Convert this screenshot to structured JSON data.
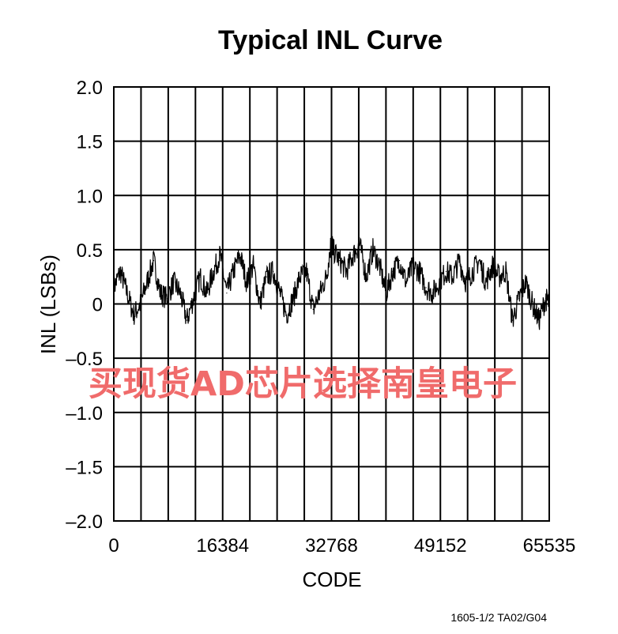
{
  "chart_data": {
    "type": "line",
    "title": "Typical INL Curve",
    "xlabel": "CODE",
    "ylabel": "INL (LSBs)",
    "xlim": [
      0,
      65535
    ],
    "ylim": [
      -2.0,
      2.0
    ],
    "x_ticks": [
      "0",
      "16384",
      "32768",
      "49152",
      "65535"
    ],
    "y_ticks": [
      "2.0",
      "1.5",
      "1.0",
      "0.5",
      "0",
      "–0.5",
      "–1.0",
      "–1.5",
      "–2.0"
    ],
    "grid": true,
    "series": [
      {
        "color": "#000000",
        "x": [
          0,
          1000,
          2000,
          3000,
          4000,
          5000,
          6000,
          7000,
          8000,
          9000,
          10000,
          11000,
          12000,
          13000,
          14000,
          15000,
          16000,
          17000,
          18000,
          19000,
          20000,
          21000,
          22000,
          23000,
          24000,
          25000,
          26000,
          27000,
          28000,
          29000,
          30000,
          31000,
          32000,
          32768,
          33000,
          34000,
          35000,
          36000,
          37000,
          38000,
          39000,
          40000,
          41000,
          42000,
          43000,
          44000,
          45000,
          46000,
          47000,
          48000,
          49000,
          50000,
          51000,
          52000,
          53000,
          54000,
          55000,
          56000,
          57000,
          58000,
          59000,
          60000,
          61000,
          62000,
          63000,
          64000,
          65000,
          65535
        ],
        "y": [
          0.15,
          0.3,
          0.1,
          -0.1,
          0.0,
          0.2,
          0.4,
          0.1,
          0.05,
          0.2,
          0.1,
          -0.15,
          0.05,
          0.25,
          0.1,
          0.3,
          0.45,
          0.1,
          0.3,
          0.45,
          0.2,
          0.35,
          0.0,
          0.25,
          0.3,
          0.1,
          -0.1,
          0.05,
          0.25,
          0.3,
          -0.05,
          0.1,
          0.25,
          0.6,
          0.5,
          0.4,
          0.3,
          0.45,
          0.55,
          0.25,
          0.5,
          0.35,
          0.1,
          0.3,
          0.4,
          0.2,
          0.35,
          0.3,
          0.15,
          0.1,
          0.2,
          0.3,
          0.25,
          0.4,
          0.2,
          0.3,
          0.4,
          0.2,
          0.35,
          0.25,
          0.3,
          -0.15,
          0.05,
          0.2,
          0.0,
          -0.15,
          0.05,
          0.0
        ]
      }
    ],
    "watermark": "买现货AD芯片选择南皇电子",
    "footnote": "1605-1/2 TA02/G04"
  }
}
